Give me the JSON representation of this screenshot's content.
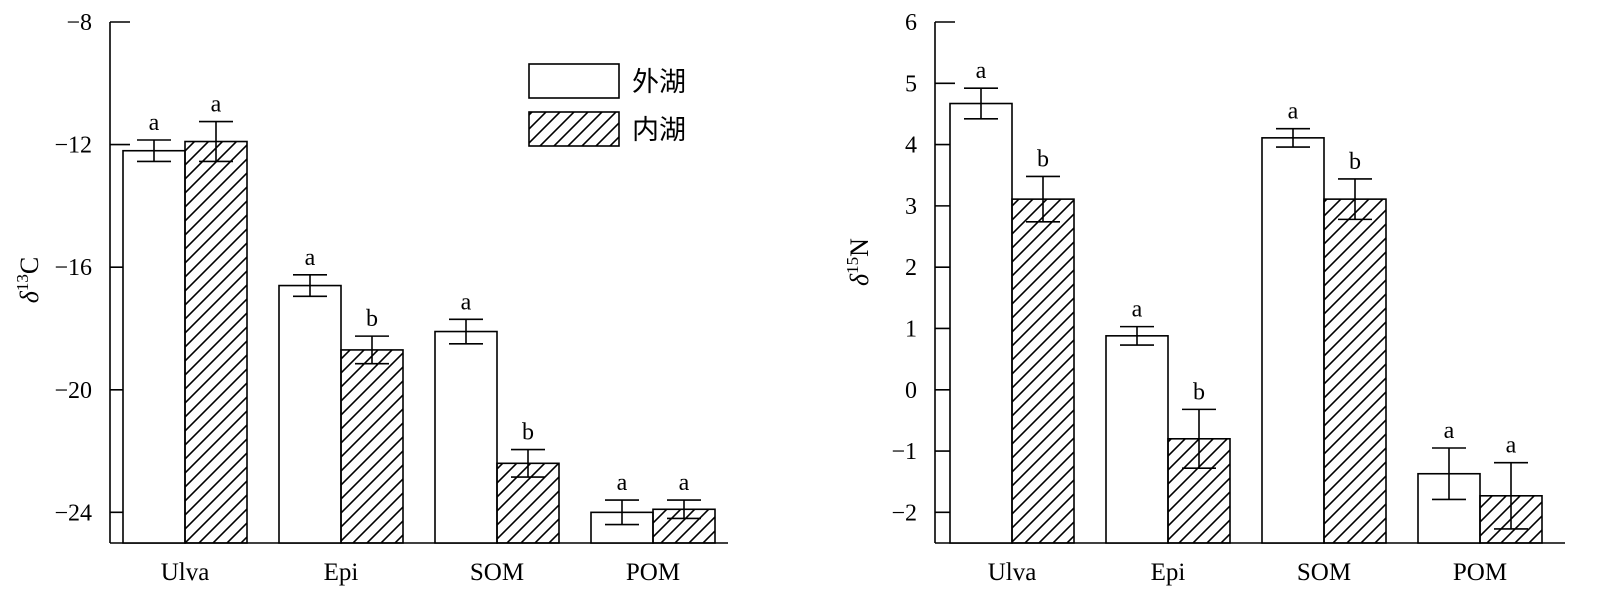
{
  "legend": {
    "outer_label": "外湖",
    "inner_label": "内湖",
    "placement": "top-right"
  },
  "chart_data": [
    {
      "type": "bar",
      "categories": [
        "Ulva",
        "Epi",
        "SOM",
        "POM"
      ],
      "ylabel_symbol": "δ",
      "ylabel_sup": "13",
      "ylabel_element": "C",
      "ylim": [
        -25,
        -8
      ],
      "yticks": [
        -8,
        -12,
        -16,
        -20,
        -24
      ],
      "ytick_labels": [
        "−8",
        "−12",
        "−16",
        "−20",
        "−24"
      ],
      "series": [
        {
          "name": "外湖",
          "pattern": "plain",
          "values": [
            -12.2,
            -16.6,
            -18.1,
            -24.0
          ],
          "errors": [
            0.35,
            0.35,
            0.4,
            0.4
          ],
          "sig": [
            "a",
            "a",
            "a",
            "a"
          ]
        },
        {
          "name": "内湖",
          "pattern": "hatched",
          "values": [
            -11.9,
            -18.7,
            -22.4,
            -23.9
          ],
          "errors": [
            0.65,
            0.45,
            0.45,
            0.3
          ],
          "sig": [
            "a",
            "b",
            "b",
            "a"
          ]
        }
      ]
    },
    {
      "type": "bar",
      "categories": [
        "Ulva",
        "Epi",
        "SOM",
        "POM"
      ],
      "ylabel_symbol": "δ",
      "ylabel_sup": "15",
      "ylabel_element": "N",
      "ylim": [
        -2.5,
        6
      ],
      "yticks": [
        6,
        5,
        4,
        3,
        2,
        1,
        0,
        -1,
        -2
      ],
      "ytick_labels": [
        "6",
        "5",
        "4",
        "3",
        "2",
        "1",
        "0",
        "−1",
        "−2"
      ],
      "series": [
        {
          "name": "外湖",
          "pattern": "plain",
          "values": [
            4.67,
            0.88,
            4.11,
            -1.37
          ],
          "errors": [
            0.25,
            0.15,
            0.15,
            0.42
          ],
          "sig": [
            "a",
            "a",
            "a",
            "a"
          ]
        },
        {
          "name": "内湖",
          "pattern": "hatched",
          "values": [
            3.11,
            -0.8,
            3.11,
            -1.73
          ],
          "errors": [
            0.37,
            0.48,
            0.33,
            0.54
          ],
          "sig": [
            "b",
            "b",
            "b",
            "a"
          ]
        }
      ]
    }
  ]
}
